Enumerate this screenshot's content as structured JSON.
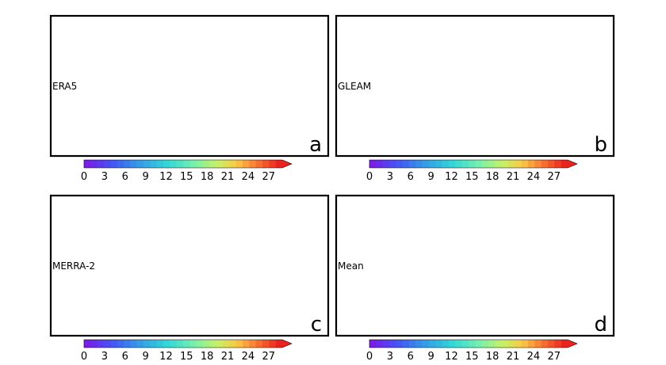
{
  "panels": [
    {
      "id": "a",
      "label": "ERA5",
      "letter": "a",
      "bias": 0.0,
      "seed": 11
    },
    {
      "id": "b",
      "label": "GLEAM",
      "letter": "b",
      "bias": -4.0,
      "seed": 23
    },
    {
      "id": "c",
      "label": "MERRA-2",
      "letter": "c",
      "bias": 2.5,
      "seed": 37
    },
    {
      "id": "d",
      "label": "Mean",
      "letter": "d",
      "bias": -0.5,
      "seed": 53
    }
  ],
  "colorbar": {
    "ticks": [
      "0",
      "3",
      "6",
      "9",
      "12",
      "15",
      "18",
      "21",
      "24",
      "27"
    ],
    "min": 0,
    "max": 29,
    "extend": "max",
    "colormap": "rainbow (purple → blue → cyan → green → yellow → orange → red)"
  },
  "colors": {
    "ocean": "#ffffff",
    "masked_land": "#cfcfcf",
    "frame": "#000000",
    "stipple": "#000000"
  }
}
